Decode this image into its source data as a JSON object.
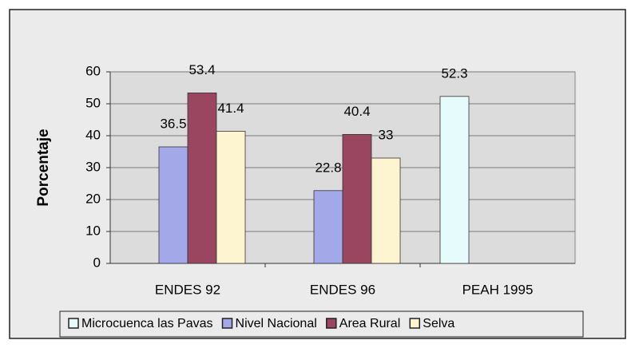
{
  "chart_data": {
    "type": "bar",
    "y_label": "Porcentaje",
    "categories": [
      "ENDES 92",
      "ENDES 96",
      "PEAH 1995"
    ],
    "series": [
      {
        "name": "Microcuenca las Pavas",
        "color": "#e6fbfb",
        "values": [
          null,
          null,
          52.3
        ]
      },
      {
        "name": "Nivel Nacional",
        "color": "#a3a8e8",
        "values": [
          36.5,
          22.8,
          null
        ]
      },
      {
        "name": "Area Rural",
        "color": "#9a4660",
        "values": [
          53.4,
          40.4,
          null
        ]
      },
      {
        "name": "Selva",
        "color": "#fdf5cf",
        "values": [
          41.4,
          33,
          null
        ]
      }
    ],
    "ylim": [
      0,
      60
    ],
    "yticks": [
      0,
      10,
      20,
      30,
      40,
      50,
      60
    ],
    "grid": true
  }
}
